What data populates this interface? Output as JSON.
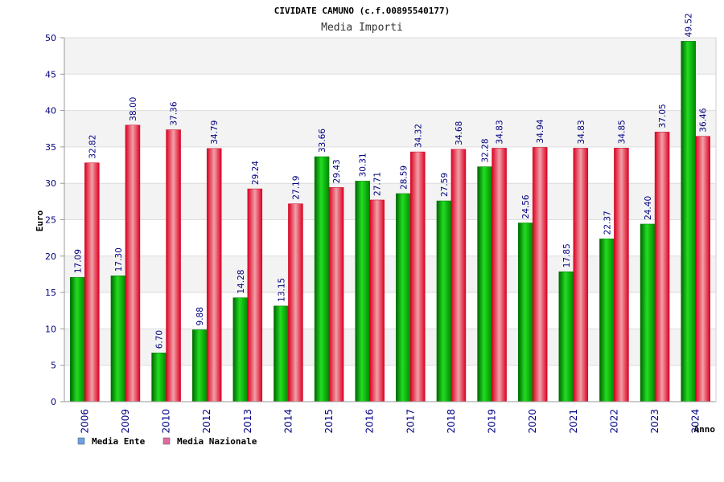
{
  "chart_data": {
    "type": "bar",
    "title": "CIVIDATE CAMUNO (c.f.00895540177)",
    "subtitle": "Media Importi",
    "xlabel": "Anno",
    "ylabel": "Euro",
    "ylim": [
      0,
      50
    ],
    "yticks": [
      0,
      5,
      10,
      15,
      20,
      25,
      30,
      35,
      40,
      45,
      50
    ],
    "grid": true,
    "legend_position": "bottom-left",
    "categories": [
      "2006",
      "2009",
      "2010",
      "2012",
      "2013",
      "2014",
      "2015",
      "2016",
      "2017",
      "2018",
      "2019",
      "2020",
      "2021",
      "2022",
      "2023",
      "2024"
    ],
    "series": [
      {
        "name": "Media Ente",
        "color": "#00bb00",
        "legend_color": "#6aa0e6",
        "values": [
          17.09,
          17.3,
          6.7,
          9.88,
          14.28,
          13.15,
          33.66,
          30.31,
          28.59,
          27.59,
          32.28,
          24.56,
          17.85,
          22.37,
          24.4,
          49.52
        ],
        "labels": [
          "17.09",
          "17.30",
          "6.70",
          "9.88",
          "14.28",
          "13.15",
          "33.66",
          "30.31",
          "28.59",
          "27.59",
          "32.28",
          "24.56",
          "17.85",
          "22.37",
          "24.40",
          "49.52"
        ]
      },
      {
        "name": "Media Nazionale",
        "color": "#ee1133",
        "legend_color": "#e06aa0",
        "values": [
          32.82,
          38.0,
          37.36,
          34.79,
          29.24,
          27.19,
          29.43,
          27.71,
          34.32,
          34.68,
          34.83,
          34.94,
          34.83,
          34.85,
          37.05,
          36.46
        ],
        "labels": [
          "32.82",
          "38.00",
          "37.36",
          "34.79",
          "29.24",
          "27.19",
          "29.43",
          "27.71",
          "34.32",
          "34.68",
          "34.83",
          "34.94",
          "34.83",
          "34.85",
          "37.05",
          "36.46"
        ]
      }
    ]
  }
}
